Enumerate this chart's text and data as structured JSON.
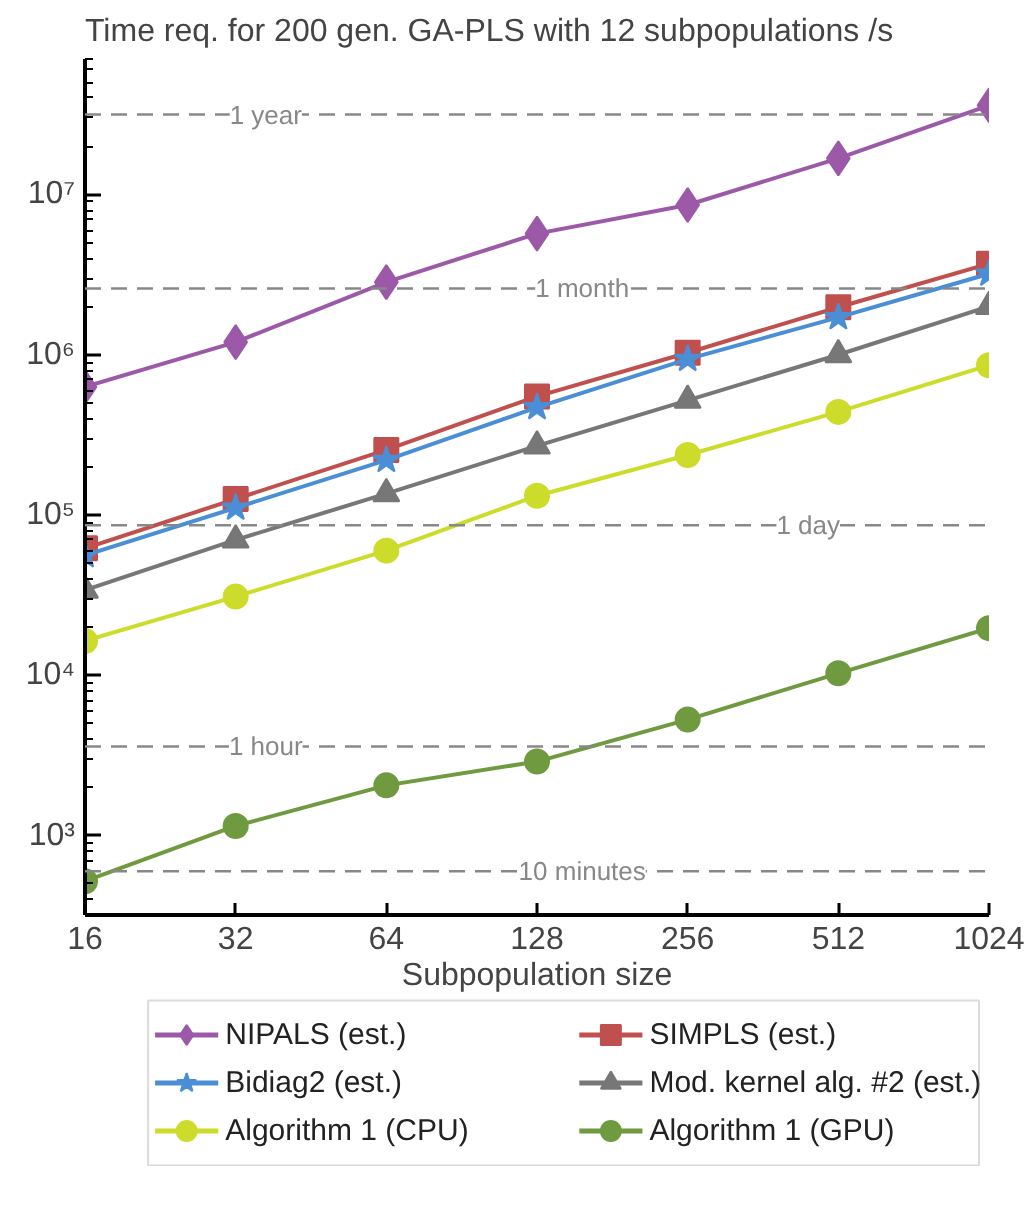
{
  "chart_data": {
    "type": "line",
    "title": "Time req. for 200 gen. GA-PLS with 12 subpopulations /s",
    "xlabel": "Subpopulation size",
    "x": [
      16,
      32,
      64,
      128,
      256,
      512,
      1024
    ],
    "log": "xy",
    "grid": false,
    "legend": "bottom",
    "xlim": [
      16,
      1024
    ],
    "xticks": [
      16,
      32,
      64,
      128,
      256,
      512,
      1024
    ],
    "ylim": [
      320,
      70000000
    ],
    "yticks": [
      {
        "value": 1000,
        "label": "10³"
      },
      {
        "value": 10000,
        "label": "10⁴"
      },
      {
        "value": 100000,
        "label": "10⁵"
      },
      {
        "value": 1000000,
        "label": "10⁶"
      },
      {
        "value": 10000000,
        "label": "10⁷"
      }
    ],
    "ref_lines": [
      {
        "axis": "y",
        "value": 31536000,
        "label": "1 year",
        "color": "#888888",
        "line_style": "dashed"
      },
      {
        "axis": "y",
        "value": 2592000,
        "label": "1 month",
        "color": "#888888",
        "line_style": "dashed"
      },
      {
        "axis": "y",
        "value": 86400,
        "label": "1 day",
        "color": "#888888",
        "line_style": "dashed"
      },
      {
        "axis": "y",
        "value": 3600,
        "label": "1 hour",
        "color": "#888888",
        "line_style": "dashed"
      },
      {
        "axis": "y",
        "value": 600,
        "label": "10 minutes",
        "color": "#888888",
        "line_style": "dashed"
      }
    ],
    "series": [
      {
        "name": "NIPALS (est.)",
        "color": "#9b59a8",
        "marker": "diamond",
        "values": [
          630000,
          1200000,
          2840000,
          5700000,
          8600000,
          16800000,
          36000000
        ]
      },
      {
        "name": "SIMPLS (est.)",
        "color": "#c0504d",
        "marker": "square",
        "values": [
          62000,
          126000,
          255000,
          550000,
          1030000,
          1980000,
          3700000
        ]
      },
      {
        "name": "Bidiag2 (est.)",
        "color": "#4a8fd6",
        "marker": "star",
        "values": [
          56000,
          111000,
          220000,
          470000,
          940000,
          1710000,
          3200000
        ]
      },
      {
        "name": "Mod. kernel alg. #2 (est.)",
        "color": "#777777",
        "marker": "triangle",
        "values": [
          34000,
          70000,
          136000,
          270000,
          520000,
          1000000,
          2000000
        ]
      },
      {
        "name": "Algorithm 1 (CPU)",
        "color": "#cddc2b",
        "marker": "circle",
        "values": [
          16400,
          31000,
          60000,
          132000,
          237000,
          440000,
          860000
        ]
      },
      {
        "name": "Algorithm 1 (GPU)",
        "color": "#6f9a40",
        "marker": "circle",
        "values": [
          520,
          1150,
          2060,
          2900,
          5300,
          10300,
          19700
        ]
      }
    ]
  }
}
